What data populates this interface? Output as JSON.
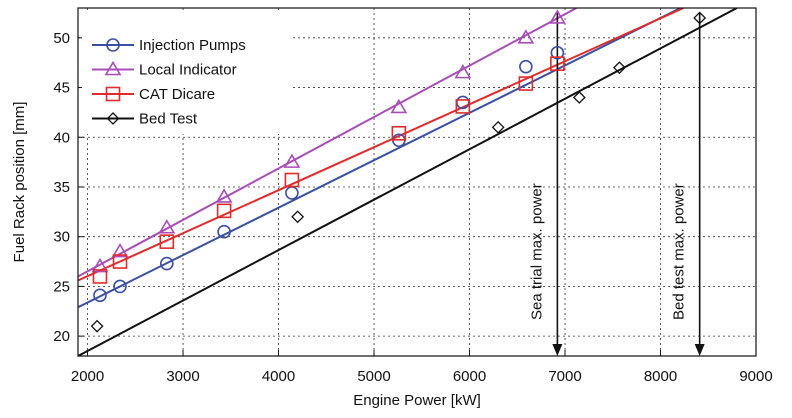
{
  "chart_data": {
    "type": "scatter",
    "xlabel": "Engine Power [kW]",
    "ylabel": "Fuel Rack position [mm]",
    "xlim": [
      1900,
      9000
    ],
    "ylim": [
      18,
      53
    ],
    "x_ticks": [
      "2000",
      "3000",
      "4000",
      "5000",
      "6000",
      "7000",
      "8000",
      "9000"
    ],
    "y_ticks": [
      "20",
      "25",
      "30",
      "35",
      "40",
      "45",
      "50"
    ],
    "x_tick_values": [
      2000,
      3000,
      4000,
      5000,
      6000,
      7000,
      8000,
      9000
    ],
    "y_tick_values": [
      20,
      25,
      30,
      35,
      40,
      45,
      50
    ],
    "grid": true,
    "legend_position": "top-left",
    "series": [
      {
        "name": "Injection Pumps",
        "marker": "circle",
        "color": "#3a4fa3",
        "x": [
          2130,
          2340,
          2830,
          3430,
          4140,
          5260,
          5930,
          6590,
          6920
        ],
        "y": [
          24.1,
          25.0,
          27.3,
          30.5,
          34.4,
          39.7,
          43.5,
          47.1,
          48.5
        ],
        "fit": [
          [
            1900,
            22.9
          ],
          [
            8210,
            53
          ]
        ]
      },
      {
        "name": "Local Indicator",
        "marker": "triangle",
        "color": "#a94cb8",
        "x": [
          2130,
          2340,
          2830,
          3430,
          4140,
          5260,
          5930,
          6590,
          6920
        ],
        "y": [
          27.0,
          28.5,
          30.9,
          34.0,
          37.5,
          43.0,
          46.5,
          50.0,
          52.0
        ],
        "fit": [
          [
            1900,
            26.0
          ],
          [
            7120,
            53
          ]
        ]
      },
      {
        "name": "CAT Dicare",
        "marker": "square",
        "color": "#e02b2b",
        "x": [
          2130,
          2340,
          2830,
          3430,
          4140,
          5260,
          5930,
          6590,
          6920
        ],
        "y": [
          26.0,
          27.5,
          29.5,
          32.6,
          35.7,
          40.4,
          43.1,
          45.4,
          47.4
        ],
        "fit": [
          [
            1900,
            25.6
          ],
          [
            8240,
            53
          ]
        ]
      },
      {
        "name": "Bed Test",
        "marker": "diamond",
        "color": "#111111",
        "x": [
          2100,
          4200,
          6300,
          7150,
          7570,
          8410
        ],
        "y": [
          21.0,
          32.0,
          41.0,
          44.0,
          47.0,
          52.0
        ],
        "fit": [
          [
            1900,
            18.0
          ],
          [
            8800,
            53
          ]
        ]
      }
    ],
    "annotations": [
      {
        "text": "Sea trial max. power",
        "x": 6920,
        "y_from": 52.5,
        "y_to": 18
      },
      {
        "text": "Bed test max. power",
        "x": 8410,
        "y_from": 52.5,
        "y_to": 18
      }
    ]
  }
}
